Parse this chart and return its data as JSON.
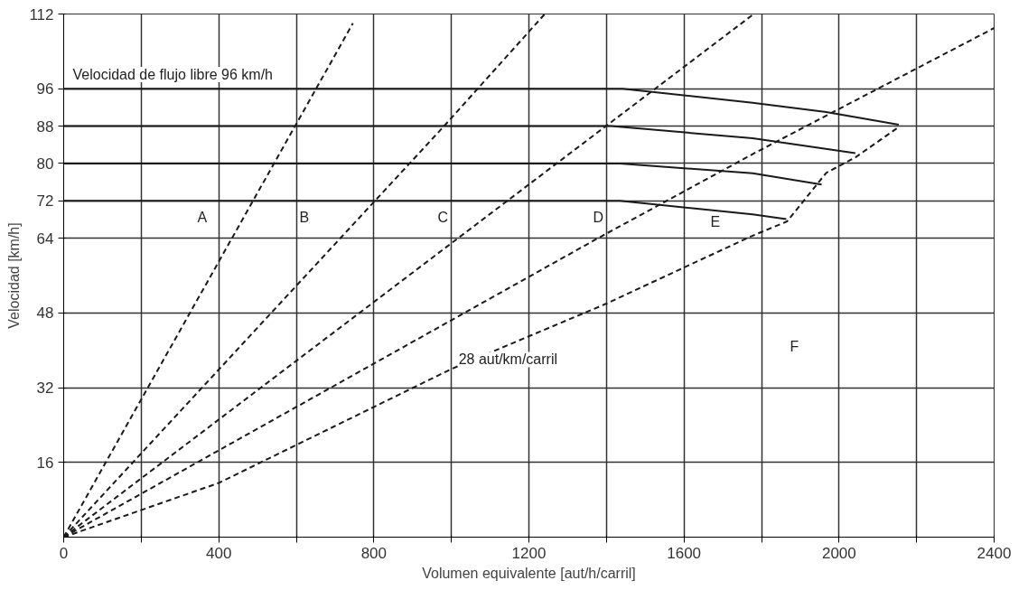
{
  "chart_data": {
    "type": "line",
    "xlabel": "Volumen equivalente [aut/h/carril]",
    "ylabel": "Velocidad [km/h]",
    "xlim": [
      0,
      2400
    ],
    "ylim": [
      0,
      112
    ],
    "xticks": [
      0,
      {
        "value": 200,
        "label": null
      },
      400,
      {
        "value": 600,
        "label": null
      },
      800,
      {
        "value": 1000,
        "label": null
      },
      1200,
      {
        "value": 1400,
        "label": null
      },
      1600,
      {
        "value": 1800,
        "label": null
      },
      2000,
      {
        "value": 2200,
        "label": null
      },
      2400
    ],
    "yticks": [
      16,
      32,
      48,
      64,
      72,
      80,
      88,
      96,
      112
    ],
    "grid": true,
    "marker": "none",
    "series": [
      {
        "color": "#1a1a1a",
        "line_style": "solid",
        "x": [
          0,
          1442,
          1777,
          1967,
          2154
        ],
        "values": [
          96,
          96,
          93,
          91,
          88.3
        ]
      },
      {
        "color": "#1a1a1a",
        "line_style": "solid",
        "x": [
          0,
          1412,
          1777,
          2042
        ],
        "values": [
          88,
          88,
          85.4,
          82.2
        ]
      },
      {
        "color": "#1a1a1a",
        "line_style": "solid",
        "x": [
          0,
          1435,
          1777,
          1955
        ],
        "values": [
          80,
          80,
          77.9,
          75.5
        ]
      },
      {
        "color": "#1a1a1a",
        "line_style": "solid",
        "x": [
          0,
          1435,
          1777,
          1864
        ],
        "values": [
          72,
          72,
          69.1,
          68.1
        ]
      },
      {
        "color": "#1a1a1a",
        "line_style": "dashed",
        "x": [
          0,
          392,
          746
        ],
        "values": [
          0,
          57.8,
          110
        ]
      },
      {
        "color": "#1a1a1a",
        "line_style": "dashed",
        "x": [
          0,
          979,
          1241
        ],
        "values": [
          0,
          87.8,
          112
        ]
      },
      {
        "color": "#1a1a1a",
        "line_style": "dashed",
        "x": [
          0,
          1780
        ],
        "values": [
          0,
          112
        ]
      },
      {
        "color": "#1a1a1a",
        "line_style": "dashed",
        "x": [
          0,
          1378,
          1777,
          2400
        ],
        "values": [
          0,
          64,
          82,
          109
        ]
      },
      {
        "color": "#1a1a1a",
        "line_style": "dashed",
        "x": [
          0,
          400,
          1000,
          1400,
          1773,
          1866,
          1967,
          2042,
          2154
        ],
        "values": [
          0,
          11.6,
          36,
          50,
          64.4,
          67.6,
          78,
          81.3,
          87.8
        ]
      }
    ],
    "annotations": [
      "Velocidad de flujo libre 96 km/h",
      "A",
      "B",
      "C",
      "D",
      "E",
      "F",
      {
        "text": "28 aut/km/carril",
        "x": 1000,
        "y": 36
      }
    ]
  }
}
